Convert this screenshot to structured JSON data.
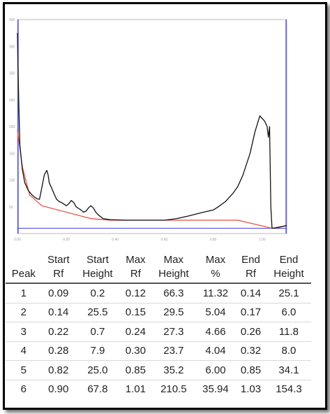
{
  "chart_data": {
    "type": "line",
    "xlim": [
      0,
      1.1
    ],
    "ylim": [
      0,
      400
    ],
    "x_ticks": [
      "0.00",
      "0.20",
      "0.40",
      "0.60",
      "0.80",
      "1.00"
    ],
    "y_ticks": [
      "400",
      "350",
      "300",
      "250",
      "200",
      "150",
      "100",
      "50"
    ],
    "colors": {
      "signal": "#111111",
      "baseline": "#e8493f",
      "axis_marker": "#3b3bd6",
      "frame": "#b9b9b9"
    },
    "signal": {
      "x": [
        0.0,
        0.005,
        0.01,
        0.02,
        0.03,
        0.045,
        0.06,
        0.07,
        0.08,
        0.09,
        0.11,
        0.12,
        0.125,
        0.13,
        0.14,
        0.15,
        0.16,
        0.17,
        0.18,
        0.19,
        0.2,
        0.21,
        0.22,
        0.23,
        0.24,
        0.25,
        0.26,
        0.27,
        0.28,
        0.29,
        0.3,
        0.31,
        0.32,
        0.33,
        0.35,
        0.38,
        0.45,
        0.55,
        0.6,
        0.65,
        0.7,
        0.75,
        0.8,
        0.82,
        0.85,
        0.88,
        0.9,
        0.92,
        0.95,
        0.97,
        0.99,
        1.0,
        1.01,
        1.02,
        1.025,
        1.03,
        1.035,
        1.04,
        1.05,
        1.06,
        1.08,
        1.1
      ],
      "y": [
        375,
        250,
        165,
        120,
        95,
        80,
        72,
        68,
        65,
        64,
        110,
        118,
        110,
        95,
        85,
        74,
        64,
        60,
        58,
        55,
        52,
        56,
        62,
        58,
        50,
        47,
        44,
        40,
        42,
        48,
        52,
        48,
        40,
        35,
        28,
        26,
        25,
        25,
        25,
        28,
        33,
        39,
        44,
        50,
        60,
        75,
        88,
        108,
        150,
        190,
        220,
        215,
        210,
        200,
        180,
        200,
        50,
        10,
        10,
        11,
        13,
        15
      ]
    },
    "baseline": {
      "x": [
        0.0,
        0.02,
        0.05,
        0.1,
        0.2,
        0.3,
        0.38,
        0.5,
        0.7,
        0.9,
        1.04,
        1.1
      ],
      "y": [
        195,
        125,
        72,
        52,
        40,
        28,
        25,
        25,
        25,
        25,
        10,
        15
      ]
    }
  },
  "table": {
    "headers": [
      [
        "",
        "Peak"
      ],
      [
        "Start",
        "Rf"
      ],
      [
        "Start",
        "Height"
      ],
      [
        "Max",
        "Rf"
      ],
      [
        "Max",
        "Height"
      ],
      [
        "Max",
        "%"
      ],
      [
        "End",
        "Rf"
      ],
      [
        "End",
        "Height"
      ]
    ],
    "rows": [
      [
        "1",
        "0.09",
        "0.2",
        "0.12",
        "66.3",
        "11.32",
        "0.14",
        "25.1"
      ],
      [
        "2",
        "0.14",
        "25.5",
        "0.15",
        "29.5",
        "5.04",
        "0.17",
        "6.0"
      ],
      [
        "3",
        "0.22",
        "0.7",
        "0.24",
        "27.3",
        "4.66",
        "0.26",
        "11.8"
      ],
      [
        "4",
        "0.28",
        "7.9",
        "0.30",
        "23.7",
        "4.04",
        "0.32",
        "8.0"
      ],
      [
        "5",
        "0.82",
        "25.0",
        "0.85",
        "35.2",
        "6.00",
        "0.85",
        "34.1"
      ],
      [
        "6",
        "0.90",
        "67.8",
        "1.01",
        "210.5",
        "35.94",
        "1.03",
        "154.3"
      ]
    ]
  }
}
